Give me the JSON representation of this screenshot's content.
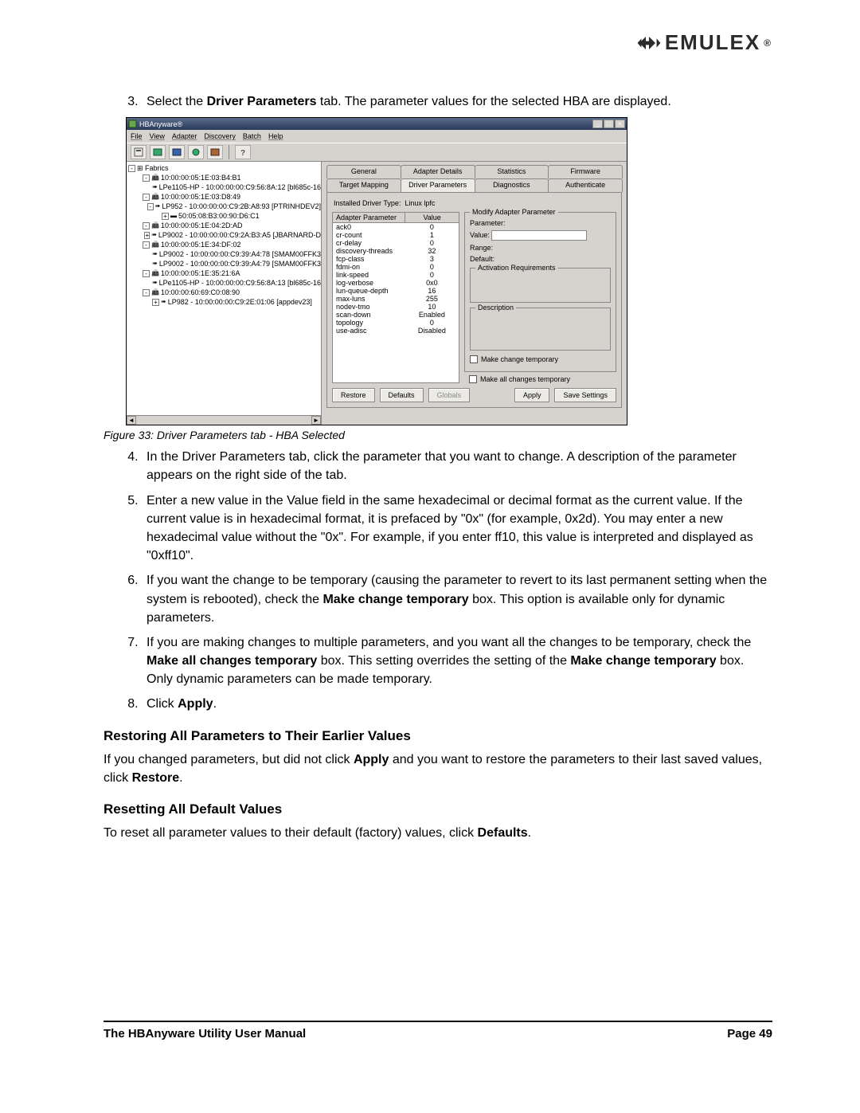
{
  "brand": "EMULEX",
  "step3_pre": "Select the ",
  "step3_bold": "Driver Parameters",
  "step3_post": " tab. The parameter values for the selected HBA are displayed.",
  "caption": "Figure 33: Driver Parameters tab - HBA Selected",
  "step4": "In the Driver Parameters tab, click the parameter that you want to change. A description of the parameter appears on the right side of the tab.",
  "step5": "Enter a new value in the Value field in the same hexadecimal or decimal format as the current value. If the current value is in hexadecimal format, it is prefaced by \"0x\" (for example, 0x2d). You may enter a new hexadecimal value without the \"0x\". For example, if you enter ff10, this value is interpreted and displayed as \"0xff10\".",
  "step6_a": "If you want the change to be temporary (causing the parameter to revert to its last permanent setting when the system is rebooted), check the ",
  "step6_b": "Make change temporary",
  "step6_c": " box. This option is available only for dynamic parameters.",
  "step7_a": "If you are making changes to multiple parameters, and you want all the changes to be temporary, check the ",
  "step7_b": "Make all changes temporary",
  "step7_c": " box. This setting overrides the setting of the ",
  "step7_d": "Make change temporary",
  "step7_e": " box. Only dynamic parameters can be made temporary.",
  "step8_a": "Click ",
  "step8_b": "Apply",
  "step8_c": ".",
  "h_restore": "Restoring All Parameters to Their Earlier Values",
  "p_restore_a": "If you changed parameters, but did not click ",
  "p_restore_b": "Apply",
  "p_restore_c": " and you want to restore the parameters to their last saved values, click ",
  "p_restore_d": "Restore",
  "p_restore_e": ".",
  "h_reset": "Resetting All Default Values",
  "p_reset_a": "To reset all parameter values to their default (factory) values, click ",
  "p_reset_b": "Defaults",
  "p_reset_c": ".",
  "footer_left": "The HBAnyware Utility User Manual",
  "footer_right": "Page 49",
  "win": {
    "title": "HBAnyware®",
    "menus": [
      "File",
      "View",
      "Adapter",
      "Discovery",
      "Batch",
      "Help"
    ],
    "tree_root": "Fabrics",
    "tree": [
      {
        "i": 1,
        "pm": "-",
        "t": "10:00:00:05:1E:03:B4:B1"
      },
      {
        "i": 2,
        "pm": "",
        "t": "LPe1105-HP - 10:00:00:00:C9:56:8A:12 [bl685c-16"
      },
      {
        "i": 1,
        "pm": "-",
        "t": "10:00:00:05:1E:03:D8:49"
      },
      {
        "i": 2,
        "pm": "-",
        "t": "LP952 - 10:00:00:00:C9:2B:A8:93 [PTRINHDEV2]"
      },
      {
        "i": 3,
        "pm": "+",
        "t": "50:05:08:B3:00:90:D6:C1"
      },
      {
        "i": 1,
        "pm": "-",
        "t": "10:00:00:05:1E:04:2D:AD"
      },
      {
        "i": 2,
        "pm": "+",
        "t": "LP9002 - 10:00:00:00:C9:2A:B3:A5 [JBARNARD-D"
      },
      {
        "i": 1,
        "pm": "-",
        "t": "10:00:00:05:1E:34:DF:02"
      },
      {
        "i": 2,
        "pm": "",
        "t": "LP9002 - 10:00:00:00:C9:39:A4:78 [SMAM00FFK3"
      },
      {
        "i": 2,
        "pm": "",
        "t": "LP9002 - 10:00:00:00:C9:39:A4:79 [SMAM00FFK3"
      },
      {
        "i": 1,
        "pm": "-",
        "t": "10:00:00:05:1E:35:21:6A"
      },
      {
        "i": 2,
        "pm": "",
        "t": "LPe1105-HP - 10:00:00:00:C9:56:8A:13 [bl685c-16"
      },
      {
        "i": 1,
        "pm": "-",
        "t": "10:00:00:60:69:C0:08:90"
      },
      {
        "i": 2,
        "pm": "+",
        "t": "LP982 - 10:00:00:00:C9:2E:01:06 [appdev23]"
      }
    ],
    "tabs_r1": [
      "General",
      "Adapter Details",
      "Statistics",
      "Firmware"
    ],
    "tabs_r2": [
      "Target Mapping",
      "Driver Parameters",
      "Diagnostics",
      "Authenticate"
    ],
    "active_tab": "Driver Parameters",
    "driver_type_lbl": "Installed Driver Type:",
    "driver_type_val": "Linux lpfc",
    "param_hdr1": "Adapter Parameter",
    "param_hdr2": "Value",
    "params": [
      {
        "n": "ack0",
        "v": "0"
      },
      {
        "n": "cr-count",
        "v": "1"
      },
      {
        "n": "cr-delay",
        "v": "0"
      },
      {
        "n": "discovery-threads",
        "v": "32"
      },
      {
        "n": "fcp-class",
        "v": "3"
      },
      {
        "n": "fdmi-on",
        "v": "0"
      },
      {
        "n": "link-speed",
        "v": "0"
      },
      {
        "n": "log-verbose",
        "v": "0x0"
      },
      {
        "n": "lun-queue-depth",
        "v": "16"
      },
      {
        "n": "max-luns",
        "v": "255"
      },
      {
        "n": "nodev-tmo",
        "v": "10"
      },
      {
        "n": "scan-down",
        "v": "Enabled"
      },
      {
        "n": "topology",
        "v": "0"
      },
      {
        "n": "use-adisc",
        "v": "Disabled"
      }
    ],
    "mod_title": "Modify Adapter Parameter",
    "mod_labels": {
      "param": "Parameter:",
      "value": "Value:",
      "range": "Range:",
      "default": "Default:"
    },
    "act_req": "Activation Requirements",
    "desc": "Description",
    "chk1": "Make change temporary",
    "chk2": "Make all changes temporary",
    "btns": [
      "Restore",
      "Defaults",
      "Globals",
      "Apply",
      "Save Settings"
    ]
  }
}
